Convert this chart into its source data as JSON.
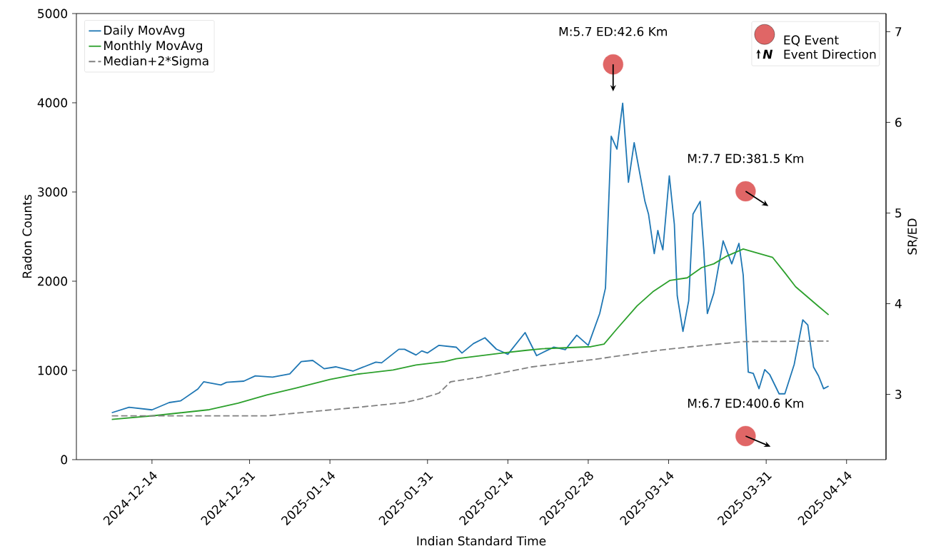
{
  "chart_data": {
    "type": "line",
    "xlabel": "Indian Standard Time",
    "ylabel": "Radon Counts",
    "y2label": "SR/ED",
    "xlim": [
      "2024-11-30T20:00",
      "2025-04-20T21:00"
    ],
    "xticks": [
      "2024-12-14",
      "2024-12-31",
      "2025-01-14",
      "2025-01-31",
      "2025-02-14",
      "2025-02-28",
      "2025-03-14",
      "2025-03-31",
      "2025-04-14"
    ],
    "ylim": [
      0,
      5000
    ],
    "yticks": [
      0,
      1000,
      2000,
      3000,
      4000,
      5000
    ],
    "y2lim": [
      2.28,
      7.2
    ],
    "y2ticks": [
      3,
      4,
      5,
      6,
      7
    ],
    "legend": "top left",
    "series": [
      {
        "name": "Daily MovAvg",
        "color": "#1f77b4",
        "line_style": "solid",
        "x": [
          "2024-12-07",
          "2024-12-10",
          "2024-12-14",
          "2024-12-17",
          "2024-12-19",
          "2024-12-22",
          "2024-12-23",
          "2024-12-26",
          "2024-12-27",
          "2024-12-30",
          "2025-01-01",
          "2025-01-04",
          "2025-01-07",
          "2025-01-09",
          "2025-01-11",
          "2025-01-13",
          "2025-01-15",
          "2025-01-18",
          "2025-01-22",
          "2025-01-23",
          "2025-01-26",
          "2025-01-27",
          "2025-01-29",
          "2025-01-30",
          "2025-01-31",
          "2025-02-02",
          "2025-02-05",
          "2025-02-06",
          "2025-02-08",
          "2025-02-10",
          "2025-02-12",
          "2025-02-14",
          "2025-02-17",
          "2025-02-19",
          "2025-02-22",
          "2025-02-24",
          "2025-02-26",
          "2025-02-28",
          "2025-03-02",
          "2025-03-03",
          "2025-03-04",
          "2025-03-05",
          "2025-03-06",
          "2025-03-07",
          "2025-03-08",
          "2025-03-09T21:00",
          "2025-03-10T12:00",
          "2025-03-11T12:00",
          "2025-03-12T03:00",
          "2025-03-12T12:00",
          "2025-03-13T00:00",
          "2025-03-14T03:00",
          "2025-03-15T00:00",
          "2025-03-15T12:00",
          "2025-03-16T12:00",
          "2025-03-17T12:00",
          "2025-03-18T06:00",
          "2025-03-19T12:00",
          "2025-03-20T03:00",
          "2025-03-20T18:00",
          "2025-03-21T21:00",
          "2025-03-23T12:00",
          "2025-03-25T00:00",
          "2025-03-26T06:00",
          "2025-03-27T00:00",
          "2025-03-27T21:00",
          "2025-03-28T18:00",
          "2025-03-29T18:00",
          "2025-03-30T18:00",
          "2025-03-31T15:00",
          "2025-04-02T06:00",
          "2025-04-03T06:00",
          "2025-04-04T21:00",
          "2025-04-06T09:00",
          "2025-04-07T06:00",
          "2025-04-08T06:00",
          "2025-04-09T03:00",
          "2025-04-10T00:00",
          "2025-04-10T21:00"
        ],
        "values": [
          526,
          587,
          558,
          640,
          659,
          792,
          872,
          837,
          867,
          880,
          939,
          925,
          960,
          1099,
          1112,
          1019,
          1040,
          992,
          1093,
          1085,
          1237,
          1237,
          1173,
          1219,
          1195,
          1281,
          1260,
          1195,
          1301,
          1366,
          1238,
          1181,
          1424,
          1166,
          1261,
          1232,
          1395,
          1281,
          1638,
          1923,
          3624,
          3481,
          3995,
          3109,
          3552,
          2895,
          2752,
          2309,
          2568,
          2466,
          2352,
          3181,
          2638,
          1838,
          1438,
          1781,
          2752,
          2895,
          2352,
          1638,
          1867,
          2452,
          2195,
          2424,
          2066,
          981,
          967,
          795,
          1009,
          952,
          738,
          738,
          1066,
          1566,
          1509,
          1038,
          938,
          795,
          824
        ]
      },
      {
        "name": "Monthly MovAvg",
        "color": "#2ca02c",
        "line_style": "solid",
        "x": [
          "2024-12-07",
          "2024-12-14T12:00",
          "2024-12-24",
          "2024-12-29",
          "2025-01-03",
          "2025-01-08",
          "2025-01-14",
          "2025-01-19",
          "2025-01-25",
          "2025-01-29",
          "2025-02-03",
          "2025-02-05",
          "2025-02-13",
          "2025-02-17",
          "2025-02-20",
          "2025-02-28T12:00",
          "2025-03-02T18:00",
          "2025-03-05",
          "2025-03-08T12:00",
          "2025-03-11T06:00",
          "2025-03-14T06:00",
          "2025-03-17T06:00",
          "2025-03-19T18:00",
          "2025-03-21T21:00",
          "2025-03-24T03:00",
          "2025-03-27",
          "2025-04-01T03:00",
          "2025-04-03T06:00",
          "2025-04-05T03:00",
          "2025-04-08T18:00",
          "2025-04-10T21:00"
        ],
        "values": [
          451,
          494,
          560,
          632,
          725,
          800,
          899,
          960,
          1005,
          1061,
          1099,
          1131,
          1195,
          1224,
          1243,
          1266,
          1295,
          1466,
          1723,
          1881,
          2009,
          2038,
          2152,
          2195,
          2281,
          2361,
          2266,
          2095,
          1938,
          1738,
          1623
        ]
      },
      {
        "name": "Median+2*Sigma",
        "color": "#808080",
        "line_style": "dashed",
        "x": [
          "2024-12-07",
          "2024-12-21",
          "2025-01-03",
          "2025-01-10",
          "2025-01-19",
          "2025-01-27",
          "2025-01-30",
          "2025-02-02",
          "2025-02-04",
          "2025-02-09",
          "2025-02-18",
          "2025-03-01",
          "2025-03-12",
          "2025-03-18",
          "2025-03-27",
          "2025-04-10T21:00"
        ],
        "values": [
          491,
          491,
          491,
          533,
          587,
          640,
          685,
          746,
          872,
          923,
          1038,
          1123,
          1224,
          1266,
          1323,
          1329
        ]
      },
      {
        "name": "EQ Event",
        "color": "#e06666",
        "type": "scatter",
        "marker": "circle",
        "axis": "y2",
        "x": [
          "2025-03-04T08:00",
          "2025-03-27T10:00",
          "2025-03-27T10:00"
        ],
        "values": [
          6.64,
          5.24,
          2.54
        ]
      }
    ],
    "annotations": [
      "M:5.7 ED:42.6 Km",
      "M:7.7 ED:381.5 Km",
      "M:6.7 ED:400.6 Km",
      "Event Direction",
      "N"
    ]
  }
}
